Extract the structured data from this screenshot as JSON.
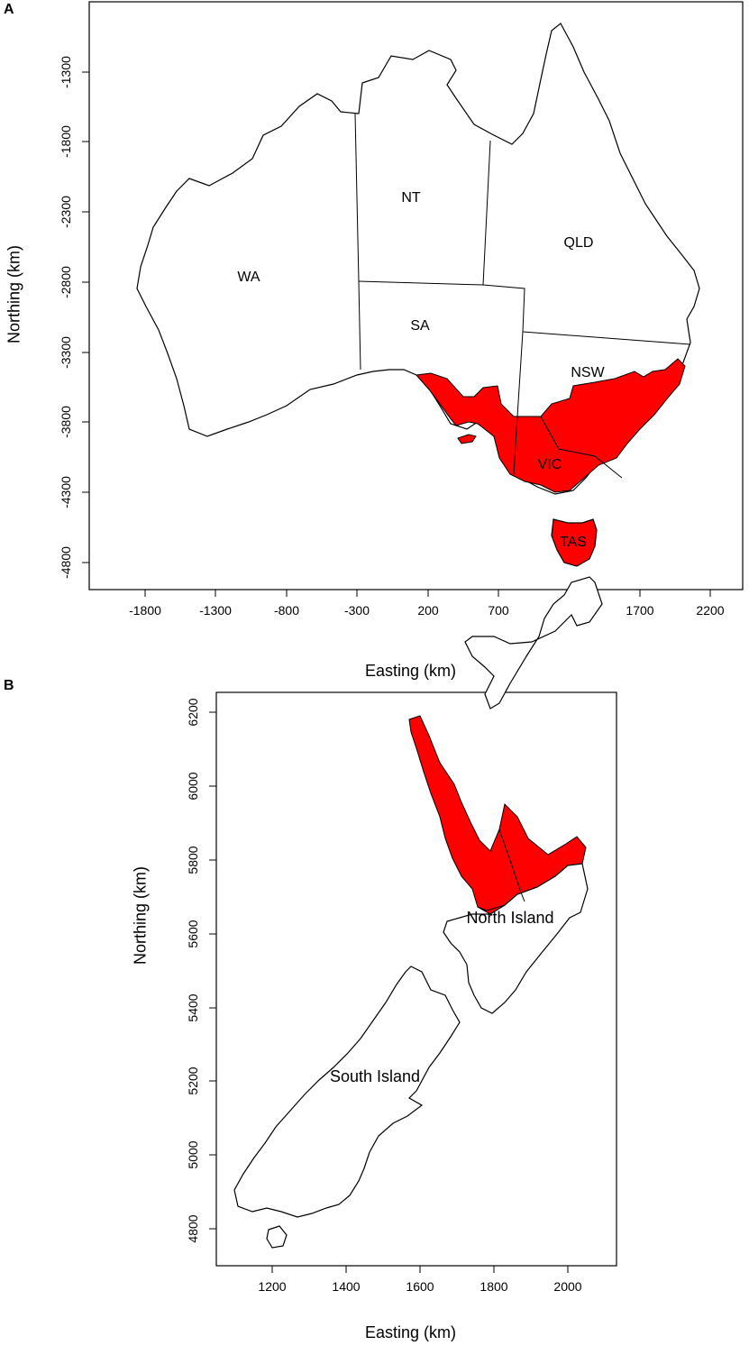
{
  "panels": [
    {
      "letter": "A",
      "xlabel": "Easting (km)",
      "ylabel": "Northing (km)",
      "xticks": [
        "-1800",
        "-1300",
        "-800",
        "-300",
        "200",
        "700",
        "1200",
        "1700",
        "2200"
      ],
      "yticks": [
        "-1300",
        "-1800",
        "-2300",
        "-2800",
        "-3300",
        "-3800",
        "-4300",
        "-4800"
      ],
      "region_labels": [
        "WA",
        "NT",
        "SA",
        "QLD",
        "NSW",
        "VIC",
        "TAS"
      ]
    },
    {
      "letter": "B",
      "xlabel": "Easting (km)",
      "ylabel": "Northing (km)",
      "xticks": [
        "1200",
        "1400",
        "1600",
        "1800",
        "2000"
      ],
      "yticks": [
        "6200",
        "6000",
        "5800",
        "5600",
        "5400",
        "5200",
        "5000",
        "4800"
      ],
      "region_labels": [
        "North Island",
        "South Island"
      ]
    }
  ],
  "colors": {
    "highlight": "#ff0000",
    "outline": "#000000",
    "land": "#ffffff"
  }
}
